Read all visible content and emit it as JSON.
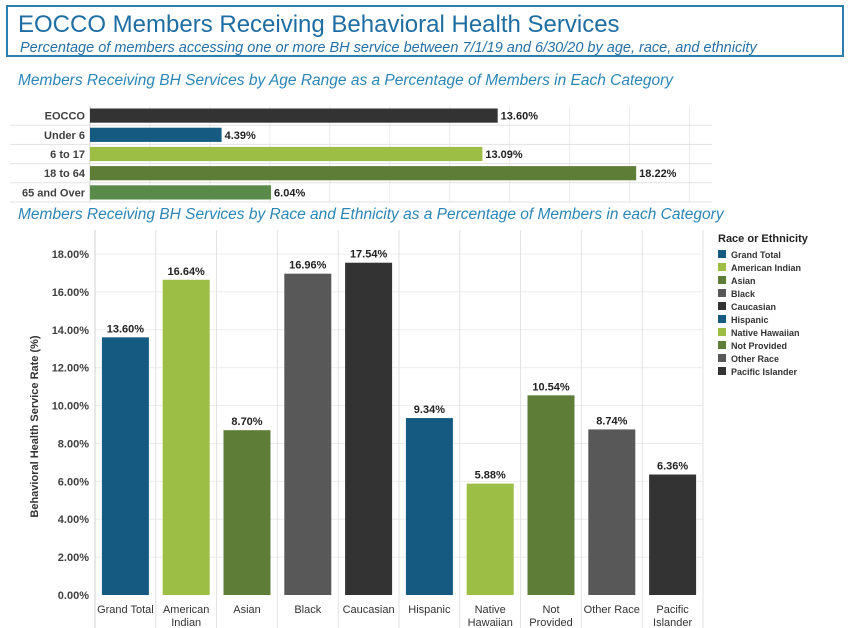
{
  "header": {
    "title": "EOCCO Members Receiving Behavioral Health Services",
    "subtitle": "Percentage of members accessing one or more BH service between 7/1/19 and 6/30/20 by age, race, and ethnicity"
  },
  "colors": {
    "dark_blue": "#155a80",
    "light_green": "#9cbe45",
    "olive": "#5e7e38",
    "gray": "#585858",
    "charcoal": "#333333",
    "medium_green": "#5a8a4a",
    "header_blue": "#1f6ea3",
    "section_title_blue": "#2b86b6"
  },
  "chart_data": [
    {
      "type": "bar",
      "orientation": "horizontal",
      "title": "Members Receiving BH Services by Age Range as a Percentage of Members in Each Category",
      "categories": [
        "EOCCO",
        "Under 6",
        "6 to 17",
        "18 to 64",
        "65 and Over"
      ],
      "values": [
        13.6,
        4.39,
        13.09,
        18.22,
        6.04
      ],
      "value_labels": [
        "13.60%",
        "4.39%",
        "13.09%",
        "18.22%",
        "6.04%"
      ],
      "bar_colors": [
        "#333333",
        "#155a80",
        "#9cbe45",
        "#5e7e38",
        "#5a8a4a"
      ],
      "grid": true
    },
    {
      "type": "bar",
      "orientation": "vertical",
      "title": "Members Receiving BH Services by Race and Ethnicity as a Percentage of Members in each Category",
      "ylabel": "Behavioral Health Service Rate (%)",
      "ylim": [
        0,
        19
      ],
      "yticks": [
        "0.00%",
        "2.00%",
        "4.00%",
        "6.00%",
        "8.00%",
        "10.00%",
        "12.00%",
        "14.00%",
        "16.00%",
        "18.00%"
      ],
      "categories": [
        [
          "Grand Total"
        ],
        [
          "American",
          "Indian"
        ],
        [
          "Asian"
        ],
        [
          "Black"
        ],
        [
          "Caucasian"
        ],
        [
          "Hispanic"
        ],
        [
          "Native",
          "Hawaiian"
        ],
        [
          "Not",
          "Provided"
        ],
        [
          "Other Race"
        ],
        [
          "Pacific",
          "Islander"
        ]
      ],
      "values": [
        13.6,
        16.64,
        8.7,
        16.96,
        17.54,
        9.34,
        5.88,
        10.54,
        8.74,
        6.36
      ],
      "value_labels": [
        "13.60%",
        "16.64%",
        "8.70%",
        "16.96%",
        "17.54%",
        "9.34%",
        "5.88%",
        "10.54%",
        "8.74%",
        "6.36%"
      ],
      "bar_colors": [
        "#155a80",
        "#9cbe45",
        "#5e7e38",
        "#585858",
        "#333333",
        "#155a80",
        "#9cbe45",
        "#5e7e38",
        "#585858",
        "#333333"
      ],
      "legend": {
        "title": "Race or Ethnicity",
        "position": "right",
        "items": [
          "Grand Total",
          "American Indian",
          "Asian",
          "Black",
          "Caucasian",
          "Hispanic",
          "Native Hawaiian",
          "Not Provided",
          "Other Race",
          "Pacific Islander"
        ]
      },
      "grid": true
    }
  ]
}
